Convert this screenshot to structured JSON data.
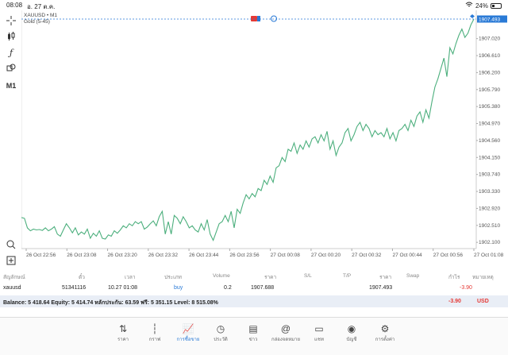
{
  "status": {
    "time": "08:08",
    "date": "อ. 27 ต.ค.",
    "battery": "24%",
    "battery_level": 0.24
  },
  "chart": {
    "symbol_line": "XAUUSD • M1",
    "indicator": "Gold (5-45)",
    "current_price": "1907.493",
    "y_ticks": [
      "1907.020",
      "1906.610",
      "1906.200",
      "1905.790",
      "1905.380",
      "1904.970",
      "1904.560",
      "1904.150",
      "1903.740",
      "1903.330",
      "1902.920",
      "1902.510",
      "1902.100"
    ],
    "x_ticks": [
      "26 Oct 22:56",
      "26 Oct 23:08",
      "26 Oct 23:20",
      "26 Oct 23:32",
      "26 Oct 23:44",
      "26 Oct 23:56",
      "27 Oct 00:08",
      "27 Oct 00:20",
      "27 Oct 00:32",
      "27 Oct 00:44",
      "27 Oct 00:56",
      "27 Oct 01:08"
    ],
    "tools": [
      "crosshair-icon",
      "candles-icon",
      "indicator-icon",
      "objects-icon",
      "M1"
    ],
    "line_color": "#4caf7d"
  },
  "chart_data": {
    "type": "line",
    "ylim": [
      1901.95,
      1907.55
    ],
    "series": [
      {
        "values": [
          1902.7,
          1902.68,
          1902.45,
          1902.38,
          1902.42,
          1902.4,
          1902.41,
          1902.39,
          1902.45,
          1902.38,
          1902.42,
          1902.48,
          1902.3,
          1902.25,
          1902.4,
          1902.55,
          1902.45,
          1902.33,
          1902.45,
          1902.28,
          1902.35,
          1902.3,
          1902.42,
          1902.2,
          1902.32,
          1902.25,
          1902.38,
          1902.2,
          1902.18,
          1902.28,
          1902.25,
          1902.38,
          1902.32,
          1902.4,
          1902.5,
          1902.45,
          1902.55,
          1902.5,
          1902.6,
          1902.55,
          1902.6,
          1902.42,
          1902.47,
          1902.55,
          1902.62,
          1902.5,
          1902.72,
          1902.85,
          1902.3,
          1902.6,
          1902.3,
          1902.75,
          1902.68,
          1902.55,
          1902.72,
          1902.6,
          1902.45,
          1902.5,
          1902.4,
          1902.35,
          1902.55,
          1902.4,
          1902.65,
          1902.3,
          1902.15,
          1902.35,
          1902.55,
          1902.6,
          1902.75,
          1902.6,
          1902.85,
          1902.45,
          1902.9,
          1902.8,
          1903.05,
          1903.25,
          1903.15,
          1903.28,
          1903.2,
          1903.4,
          1903.35,
          1903.6,
          1903.5,
          1903.7,
          1903.55,
          1903.9,
          1903.95,
          1904.15,
          1904.05,
          1904.35,
          1904.3,
          1904.5,
          1904.25,
          1904.45,
          1904.35,
          1904.55,
          1904.4,
          1904.6,
          1904.65,
          1904.5,
          1904.7,
          1904.55,
          1904.78,
          1904.35,
          1904.55,
          1904.2,
          1904.4,
          1904.5,
          1904.75,
          1904.85,
          1904.55,
          1904.7,
          1904.9,
          1905.0,
          1904.8,
          1904.95,
          1904.85,
          1904.65,
          1904.8,
          1904.7,
          1904.75,
          1904.65,
          1904.85,
          1904.6,
          1904.75,
          1904.55,
          1904.8,
          1904.85,
          1904.95,
          1904.8,
          1905.05,
          1904.9,
          1905.15,
          1905.25,
          1905.0,
          1905.3,
          1905.1,
          1905.5,
          1905.85,
          1906.05,
          1906.3,
          1906.55,
          1906.1,
          1906.8,
          1906.65,
          1906.9,
          1907.1,
          1907.25,
          1907.05,
          1907.15,
          1907.35,
          1907.493
        ]
      }
    ]
  },
  "trade": {
    "headers": [
      "สัญลักษณ์",
      "ตั๋ว",
      "เวลา",
      "ประเภท",
      "Volume",
      "ราคา",
      "S/L",
      "T/P",
      "ราคา",
      "Swap",
      "กำไร",
      "หมายเหตุ"
    ],
    "row": {
      "symbol": "xauusd",
      "ticket": "51341116",
      "time": "10.27 01:08",
      "type": "buy",
      "volume": "0.2",
      "open_price": "1907.688",
      "sl": "",
      "tp": "",
      "price": "1907.493",
      "swap": "",
      "profit": "-3.90",
      "comment": ""
    },
    "balance_text": "Balance: 5 418.64 Equity: 5 414.74 หลักประกัน: 63.59 ฟรี: 5 351.15 Level: 8 515.08%",
    "balance_profit": "-3.90",
    "currency": "USD"
  },
  "nav": [
    {
      "label": "ราคา",
      "icon": "quotes-icon",
      "glyph": "⇅"
    },
    {
      "label": "กราฟ",
      "icon": "chart-candles-icon",
      "glyph": "┆"
    },
    {
      "label": "การซื้อขาย",
      "icon": "trade-icon",
      "glyph": "📈"
    },
    {
      "label": "ประวัติ",
      "icon": "history-icon",
      "glyph": "◷"
    },
    {
      "label": "ข่าว",
      "icon": "news-icon",
      "glyph": "▤"
    },
    {
      "label": "กล่องจดหมาย",
      "icon": "mailbox-icon",
      "glyph": "@"
    },
    {
      "label": "แชท",
      "icon": "chat-icon",
      "glyph": "▭"
    },
    {
      "label": "บัญชี",
      "icon": "account-icon",
      "glyph": "◉"
    },
    {
      "label": "การตั้งค่า",
      "icon": "settings-icon",
      "glyph": "⚙"
    }
  ]
}
